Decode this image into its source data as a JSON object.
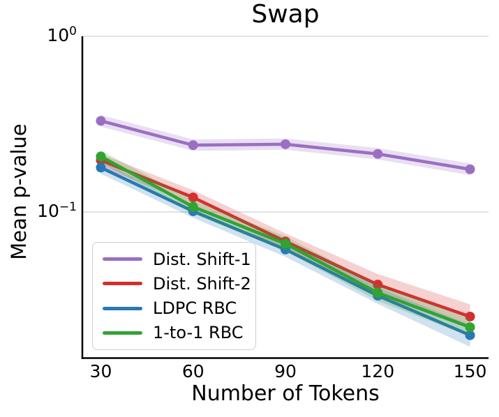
{
  "chart_data": {
    "type": "line",
    "title": "Swap",
    "xlabel": "Number of Tokens",
    "ylabel": "Mean p-value",
    "yscale": "log",
    "xlim": [
      24,
      156
    ],
    "ylim": [
      0.0148,
      1.0
    ],
    "grid": "horizontal",
    "grid_color": "#d9d9d9",
    "axis_color": "#000000",
    "band_opacity": 0.22,
    "legend_position": "lower-left",
    "x": [
      30,
      60,
      90,
      120,
      150
    ],
    "xticks": [
      "30",
      "60",
      "90",
      "120",
      "150"
    ],
    "yticks": [
      {
        "label_base": "10",
        "label_exp": "0",
        "value": 1.0
      },
      {
        "label_base": "10",
        "label_exp": "−1",
        "value": 0.1
      }
    ],
    "series": [
      {
        "name": "Dist. Shift-1",
        "color": "#9a6fc2",
        "values": [
          0.33,
          0.24,
          0.243,
          0.214,
          0.175
        ],
        "ci_upper": [
          0.356,
          0.259,
          0.262,
          0.231,
          0.189
        ],
        "ci_lower": [
          0.306,
          0.223,
          0.226,
          0.199,
          0.162
        ]
      },
      {
        "name": "Dist. Shift-2",
        "color": "#d62e2e",
        "values": [
          0.197,
          0.121,
          0.068,
          0.0386,
          0.0254
        ],
        "ci_upper": [
          0.214,
          0.133,
          0.0755,
          0.0444,
          0.0298
        ],
        "ci_lower": [
          0.181,
          0.11,
          0.0612,
          0.0336,
          0.0216
        ]
      },
      {
        "name": "LDPC RBC",
        "color": "#2878b5",
        "values": [
          0.179,
          0.101,
          0.0612,
          0.0334,
          0.0199
        ],
        "ci_upper": [
          0.194,
          0.11,
          0.0673,
          0.0372,
          0.0228
        ],
        "ci_lower": [
          0.165,
          0.0927,
          0.0556,
          0.03,
          0.0171
        ]
      },
      {
        "name": "1-to-1 RBC",
        "color": "#31a331",
        "values": [
          0.207,
          0.107,
          0.066,
          0.0347,
          0.0221
        ],
        "ci_upper": [
          0.224,
          0.117,
          0.0726,
          0.0386,
          0.0249
        ],
        "ci_lower": [
          0.191,
          0.0978,
          0.06,
          0.0312,
          0.0196
        ]
      }
    ]
  }
}
